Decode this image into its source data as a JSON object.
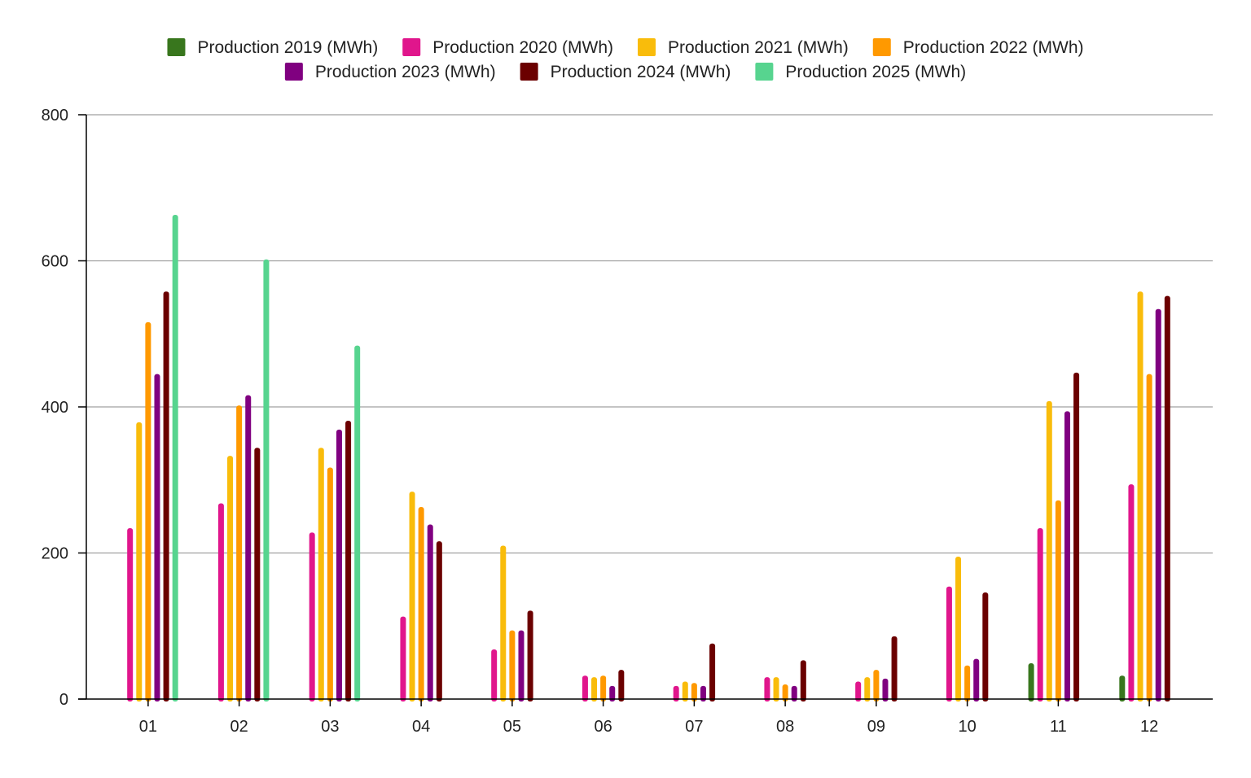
{
  "chart_data": {
    "type": "bar",
    "title": "",
    "xlabel": "",
    "ylabel": "",
    "ylim": [
      0,
      800
    ],
    "yticks": [
      "0",
      "200",
      "400",
      "600",
      "800"
    ],
    "grid": "horizontal",
    "legend_position": "top",
    "categories": [
      "01",
      "02",
      "03",
      "04",
      "05",
      "06",
      "07",
      "08",
      "09",
      "10",
      "11",
      "12"
    ],
    "series": [
      {
        "name": "Production 2019 (MWh)",
        "color": "#38761d",
        "values": [
          null,
          null,
          null,
          null,
          null,
          null,
          null,
          null,
          null,
          null,
          49,
          32
        ]
      },
      {
        "name": "Production 2020 (MWh)",
        "color": "#e0168c",
        "values": [
          234,
          268,
          228,
          113,
          68,
          32,
          18,
          30,
          24,
          154,
          234,
          294
        ]
      },
      {
        "name": "Production 2021 (MWh)",
        "color": "#f9bc0b",
        "values": [
          379,
          333,
          344,
          284,
          210,
          30,
          24,
          30,
          30,
          195,
          408,
          558
        ]
      },
      {
        "name": "Production 2022 (MWh)",
        "color": "#ff9900",
        "values": [
          516,
          402,
          317,
          263,
          94,
          32,
          22,
          20,
          40,
          46,
          272,
          445
        ]
      },
      {
        "name": "Production 2023 (MWh)",
        "color": "#800080",
        "values": [
          445,
          416,
          369,
          239,
          94,
          18,
          18,
          18,
          28,
          55,
          394,
          534
        ]
      },
      {
        "name": "Production 2024 (MWh)",
        "color": "#6b0000",
        "values": [
          558,
          344,
          381,
          216,
          121,
          40,
          76,
          53,
          86,
          146,
          447,
          552
        ]
      },
      {
        "name": "Production 2025 (MWh)",
        "color": "#57d48f",
        "values": [
          663,
          602,
          484,
          null,
          null,
          null,
          null,
          null,
          null,
          null,
          null,
          null
        ]
      }
    ]
  }
}
